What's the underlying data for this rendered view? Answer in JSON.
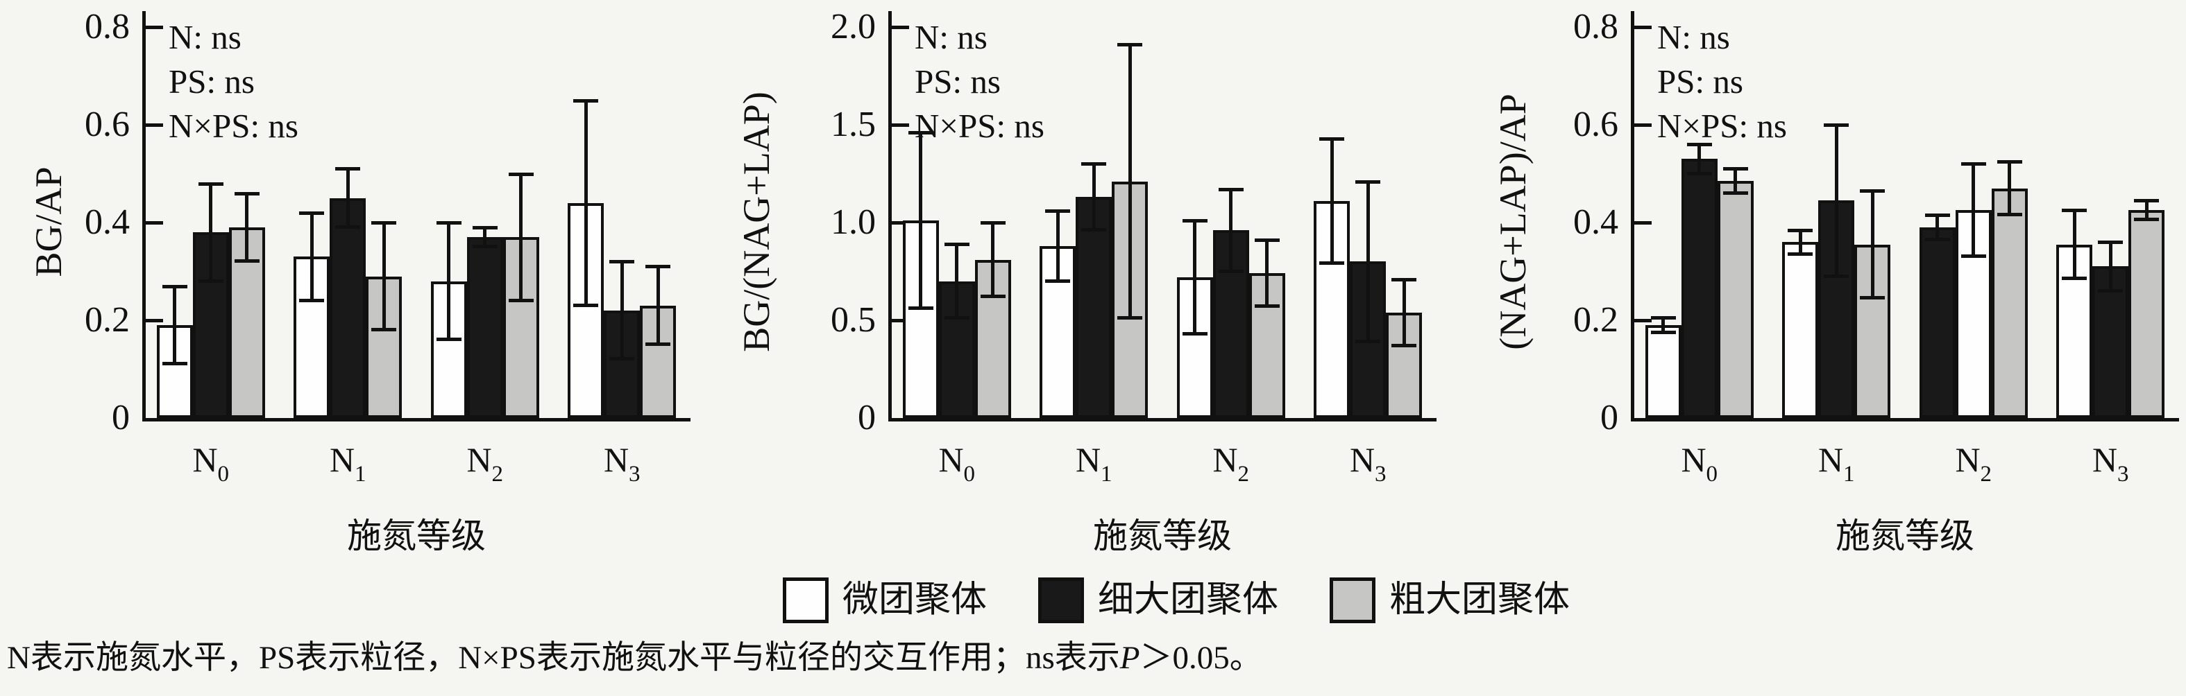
{
  "figure": {
    "background": "#f5f5f2",
    "ink": "#111111",
    "colors": {
      "white": "#fefefe",
      "black": "#191919",
      "gray": "#c6c6c5"
    },
    "annotation_lines": [
      "N: ns",
      "PS: ns",
      "N×PS: ns"
    ],
    "x_axis_title": "施氮等级",
    "legend": [
      {
        "fill": "white",
        "label": "微团聚体"
      },
      {
        "fill": "black",
        "label": "细大团聚体"
      },
      {
        "fill": "gray",
        "label": "粗大团聚体"
      }
    ],
    "caption": {
      "prefix": "N表示施氮水平，PS表示粒径，N×PS表示施氮水平与粒径的交互作用；ns表示",
      "italic": "P",
      "suffix": "＞0.05。"
    }
  },
  "chart_data": [
    {
      "type": "bar",
      "title": "",
      "ylabel": "BG/AP",
      "xlabel": "施氮等级",
      "ylim": [
        0,
        0.8
      ],
      "yticks": [
        0,
        0.2,
        0.4,
        0.6,
        0.8
      ],
      "ytick_labels": [
        "0",
        "0.2",
        "0.4",
        "0.6",
        "0.8"
      ],
      "categories": [
        "N0",
        "N1",
        "N2",
        "N3"
      ],
      "annotation": [
        "N: ns",
        "PS: ns",
        "N×PS: ns"
      ],
      "legend_position": "bottom-shared",
      "grid": false,
      "groups": [
        {
          "category": "N",
          "subscript": "0",
          "bars": [
            {
              "series": "微团聚体",
              "fill": "white",
              "value": 0.19,
              "err": 0.08
            },
            {
              "series": "细大团聚体",
              "fill": "black",
              "value": 0.38,
              "err": 0.1
            },
            {
              "series": "粗大团聚体",
              "fill": "gray",
              "value": 0.39,
              "err": 0.07
            }
          ]
        },
        {
          "category": "N",
          "subscript": "1",
          "bars": [
            {
              "series": "微团聚体",
              "fill": "white",
              "value": 0.33,
              "err": 0.09
            },
            {
              "series": "细大团聚体",
              "fill": "black",
              "value": 0.45,
              "err": 0.06
            },
            {
              "series": "粗大团聚体",
              "fill": "gray",
              "value": 0.29,
              "err": 0.11
            }
          ]
        },
        {
          "category": "N",
          "subscript": "2",
          "bars": [
            {
              "series": "微团聚体",
              "fill": "white",
              "value": 0.28,
              "err": 0.12
            },
            {
              "series": "细大团聚体",
              "fill": "black",
              "value": 0.37,
              "err": 0.02
            },
            {
              "series": "粗大团聚体",
              "fill": "gray",
              "value": 0.37,
              "err": 0.13
            }
          ]
        },
        {
          "category": "N",
          "subscript": "3",
          "bars": [
            {
              "series": "微团聚体",
              "fill": "white",
              "value": 0.44,
              "err": 0.21
            },
            {
              "series": "细大团聚体",
              "fill": "black",
              "value": 0.22,
              "err": 0.1
            },
            {
              "series": "粗大团聚体",
              "fill": "gray",
              "value": 0.23,
              "err": 0.08
            }
          ]
        }
      ]
    },
    {
      "type": "bar",
      "title": "",
      "ylabel": "BG/(NAG+LAP)",
      "xlabel": "施氮等级",
      "ylim": [
        0,
        2.0
      ],
      "yticks": [
        0,
        0.5,
        1.0,
        1.5,
        2.0
      ],
      "ytick_labels": [
        "0",
        "0.5",
        "1.0",
        "1.5",
        "2.0"
      ],
      "categories": [
        "N0",
        "N1",
        "N2",
        "N3"
      ],
      "annotation": [
        "N: ns",
        "PS: ns",
        "N×PS: ns"
      ],
      "legend_position": "bottom-shared",
      "grid": false,
      "groups": [
        {
          "category": "N",
          "subscript": "0",
          "bars": [
            {
              "series": "微团聚体",
              "fill": "white",
              "value": 1.01,
              "err": 0.45
            },
            {
              "series": "细大团聚体",
              "fill": "black",
              "value": 0.7,
              "err": 0.19
            },
            {
              "series": "粗大团聚体",
              "fill": "gray",
              "value": 0.81,
              "err": 0.19
            }
          ]
        },
        {
          "category": "N",
          "subscript": "1",
          "bars": [
            {
              "series": "微团聚体",
              "fill": "white",
              "value": 0.88,
              "err": 0.18
            },
            {
              "series": "细大团聚体",
              "fill": "black",
              "value": 1.13,
              "err": 0.17
            },
            {
              "series": "粗大团聚体",
              "fill": "gray",
              "value": 1.21,
              "err": 0.7
            }
          ]
        },
        {
          "category": "N",
          "subscript": "2",
          "bars": [
            {
              "series": "微团聚体",
              "fill": "white",
              "value": 0.72,
              "err": 0.29
            },
            {
              "series": "细大团聚体",
              "fill": "black",
              "value": 0.96,
              "err": 0.21
            },
            {
              "series": "粗大团聚体",
              "fill": "gray",
              "value": 0.74,
              "err": 0.17
            }
          ]
        },
        {
          "category": "N",
          "subscript": "3",
          "bars": [
            {
              "series": "微团聚体",
              "fill": "white",
              "value": 1.11,
              "err": 0.32
            },
            {
              "series": "细大团聚体",
              "fill": "black",
              "value": 0.8,
              "err": 0.41
            },
            {
              "series": "粗大团聚体",
              "fill": "gray",
              "value": 0.54,
              "err": 0.17
            }
          ]
        }
      ]
    },
    {
      "type": "bar",
      "title": "",
      "ylabel": "(NAG+LAP)/AP",
      "xlabel": "施氮等级",
      "ylim": [
        0,
        0.8
      ],
      "yticks": [
        0,
        0.2,
        0.4,
        0.6,
        0.8
      ],
      "ytick_labels": [
        "0",
        "0.2",
        "0.4",
        "0.6",
        "0.8"
      ],
      "categories": [
        "N0",
        "N1",
        "N2",
        "N3"
      ],
      "annotation": [
        "N: ns",
        "PS: ns",
        "N×PS: ns"
      ],
      "legend_position": "bottom-shared",
      "grid": false,
      "note": "At N2 the drawn bar order is black, white, gray (as in source figure).",
      "groups": [
        {
          "category": "N",
          "subscript": "0",
          "bars": [
            {
              "series": "微团聚体",
              "fill": "white",
              "value": 0.19,
              "err": 0.015
            },
            {
              "series": "细大团聚体",
              "fill": "black",
              "value": 0.53,
              "err": 0.03
            },
            {
              "series": "粗大团聚体",
              "fill": "gray",
              "value": 0.485,
              "err": 0.025
            }
          ]
        },
        {
          "category": "N",
          "subscript": "1",
          "bars": [
            {
              "series": "微团聚体",
              "fill": "white",
              "value": 0.36,
              "err": 0.025
            },
            {
              "series": "细大团聚体",
              "fill": "black",
              "value": 0.445,
              "err": 0.155
            },
            {
              "series": "粗大团聚体",
              "fill": "gray",
              "value": 0.355,
              "err": 0.11
            }
          ]
        },
        {
          "category": "N",
          "subscript": "2",
          "bars": [
            {
              "series": "细大团聚体",
              "fill": "black",
              "value": 0.39,
              "err": 0.025
            },
            {
              "series": "微团聚体",
              "fill": "white",
              "value": 0.425,
              "err": 0.095
            },
            {
              "series": "粗大团聚体",
              "fill": "gray",
              "value": 0.47,
              "err": 0.055
            }
          ]
        },
        {
          "category": "N",
          "subscript": "3",
          "bars": [
            {
              "series": "微团聚体",
              "fill": "white",
              "value": 0.355,
              "err": 0.07
            },
            {
              "series": "细大团聚体",
              "fill": "black",
              "value": 0.31,
              "err": 0.05
            },
            {
              "series": "粗大团聚体",
              "fill": "gray",
              "value": 0.425,
              "err": 0.02
            }
          ]
        }
      ]
    }
  ]
}
